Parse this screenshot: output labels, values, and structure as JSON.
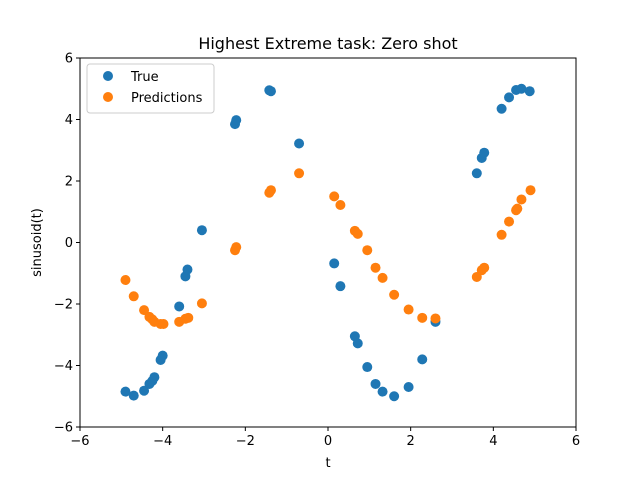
{
  "chart_data": {
    "type": "scatter",
    "title": "Highest Extreme task: Zero shot",
    "xlabel": "t",
    "ylabel": "sinusoid(t)",
    "xlim": [
      -6,
      6
    ],
    "ylim": [
      -6,
      6
    ],
    "xticks": [
      -6,
      -4,
      -2,
      0,
      2,
      4,
      6
    ],
    "yticks": [
      -6,
      -4,
      -2,
      0,
      2,
      4,
      6
    ],
    "xtick_labels": [
      "−6",
      "−4",
      "−2",
      "0",
      "2",
      "4",
      "6"
    ],
    "ytick_labels": [
      "−6",
      "−4",
      "−2",
      "0",
      "2",
      "4",
      "6"
    ],
    "grid": false,
    "legend_position": "top-left",
    "series": [
      {
        "name": "True",
        "color": "#1f77b4",
        "points": [
          [
            -4.9,
            -4.85
          ],
          [
            -4.7,
            -4.98
          ],
          [
            -4.45,
            -4.82
          ],
          [
            -4.32,
            -4.6
          ],
          [
            -4.25,
            -4.5
          ],
          [
            -4.2,
            -4.38
          ],
          [
            -4.05,
            -3.82
          ],
          [
            -4.0,
            -3.68
          ],
          [
            -3.6,
            -2.08
          ],
          [
            -3.45,
            -1.1
          ],
          [
            -3.4,
            -0.88
          ],
          [
            -3.05,
            0.4
          ],
          [
            -2.25,
            3.85
          ],
          [
            -2.22,
            3.98
          ],
          [
            -1.42,
            4.95
          ],
          [
            -1.38,
            4.92
          ],
          [
            -0.7,
            3.22
          ],
          [
            0.15,
            -0.68
          ],
          [
            0.3,
            -1.42
          ],
          [
            0.65,
            -3.05
          ],
          [
            0.72,
            -3.28
          ],
          [
            0.95,
            -4.05
          ],
          [
            1.15,
            -4.6
          ],
          [
            1.32,
            -4.85
          ],
          [
            1.6,
            -5.0
          ],
          [
            1.95,
            -4.7
          ],
          [
            2.28,
            -3.8
          ],
          [
            2.6,
            -2.58
          ],
          [
            3.6,
            2.25
          ],
          [
            3.72,
            2.75
          ],
          [
            3.78,
            2.92
          ],
          [
            4.2,
            4.35
          ],
          [
            4.38,
            4.72
          ],
          [
            4.55,
            4.96
          ],
          [
            4.68,
            5.0
          ],
          [
            4.88,
            4.92
          ]
        ]
      },
      {
        "name": "Predictions",
        "color": "#ff7f0e",
        "points": [
          [
            -4.9,
            -1.22
          ],
          [
            -4.7,
            -1.75
          ],
          [
            -4.45,
            -2.2
          ],
          [
            -4.32,
            -2.42
          ],
          [
            -4.25,
            -2.5
          ],
          [
            -4.2,
            -2.58
          ],
          [
            -4.05,
            -2.65
          ],
          [
            -3.98,
            -2.65
          ],
          [
            -3.6,
            -2.58
          ],
          [
            -3.45,
            -2.48
          ],
          [
            -3.38,
            -2.45
          ],
          [
            -3.05,
            -1.98
          ],
          [
            -2.25,
            -0.25
          ],
          [
            -2.22,
            -0.15
          ],
          [
            -1.42,
            1.62
          ],
          [
            -1.38,
            1.7
          ],
          [
            -0.7,
            2.25
          ],
          [
            0.15,
            1.5
          ],
          [
            0.3,
            1.22
          ],
          [
            0.65,
            0.38
          ],
          [
            0.72,
            0.28
          ],
          [
            0.95,
            -0.25
          ],
          [
            1.15,
            -0.82
          ],
          [
            1.32,
            -1.15
          ],
          [
            1.6,
            -1.7
          ],
          [
            1.95,
            -2.18
          ],
          [
            2.28,
            -2.45
          ],
          [
            2.6,
            -2.47
          ],
          [
            3.6,
            -1.12
          ],
          [
            3.72,
            -0.9
          ],
          [
            3.78,
            -0.82
          ],
          [
            4.2,
            0.25
          ],
          [
            4.38,
            0.68
          ],
          [
            4.55,
            1.05
          ],
          [
            4.58,
            1.1
          ],
          [
            4.68,
            1.4
          ],
          [
            4.9,
            1.7
          ]
        ]
      }
    ]
  }
}
